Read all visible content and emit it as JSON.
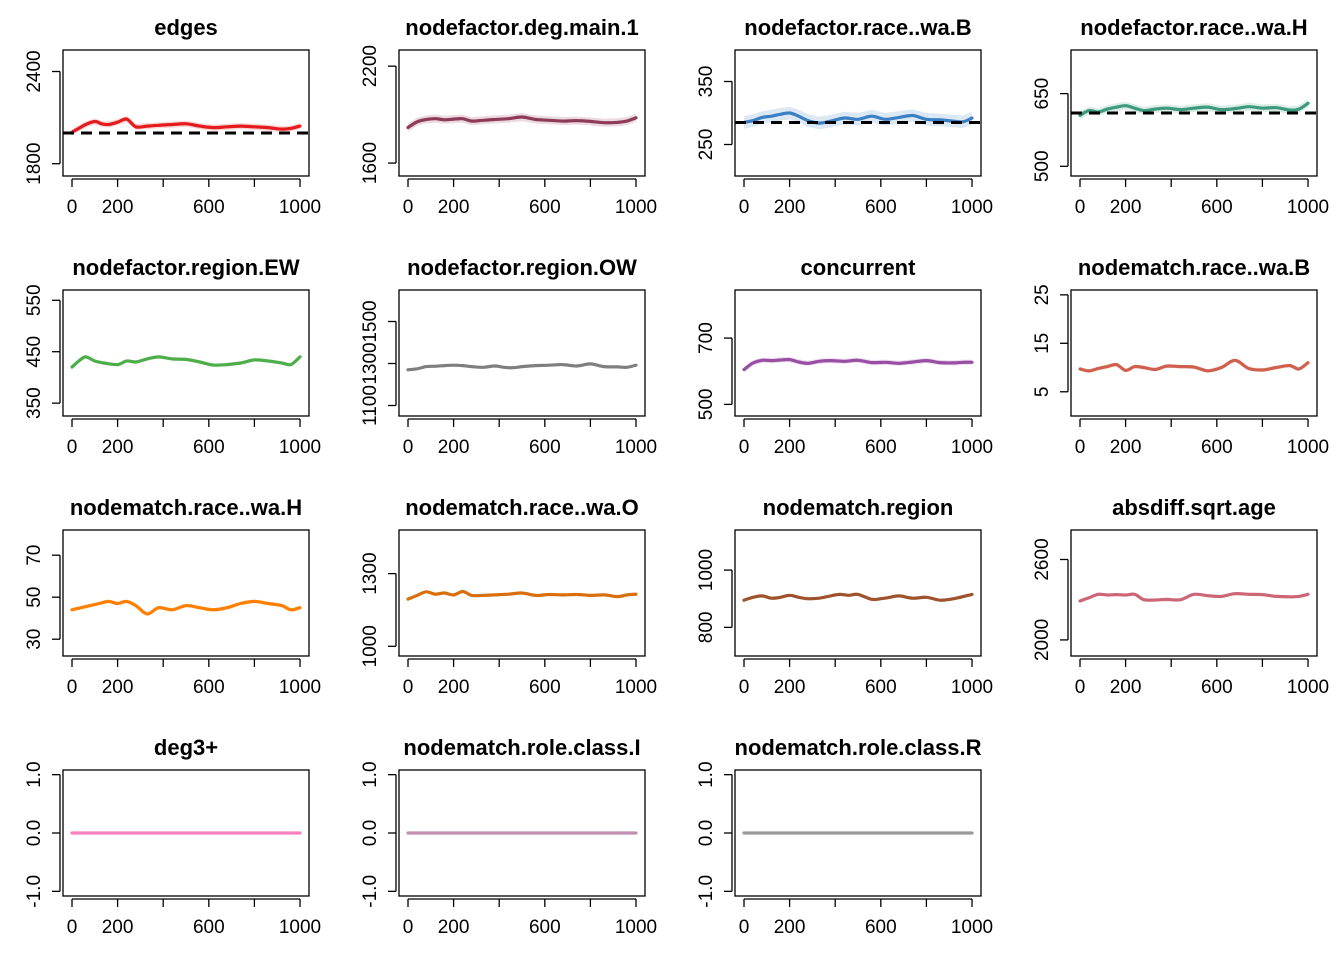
{
  "chart_data": [
    {
      "type": "line",
      "title": "edges",
      "color": "#e41a1c",
      "xlim": [
        0,
        1000
      ],
      "ylim": [
        1720,
        2540
      ],
      "yticks": [
        1800,
        2400
      ],
      "target": 2000,
      "band": 20,
      "x": [
        0,
        30,
        60,
        100,
        130,
        160,
        200,
        240,
        280,
        330,
        380,
        440,
        500,
        560,
        620,
        680,
        740,
        800,
        860,
        920,
        960,
        1000
      ],
      "values": [
        2005,
        2030,
        2055,
        2075,
        2060,
        2055,
        2070,
        2090,
        2040,
        2045,
        2050,
        2055,
        2060,
        2045,
        2035,
        2040,
        2045,
        2040,
        2035,
        2025,
        2030,
        2045
      ]
    },
    {
      "type": "line",
      "title": "nodefactor.deg.main.1",
      "color": "#8e3a59",
      "xlim": [
        0,
        1000
      ],
      "ylim": [
        1520,
        2300
      ],
      "yticks": [
        1600,
        2200
      ],
      "band": 25,
      "x": [
        0,
        40,
        80,
        120,
        160,
        200,
        240,
        280,
        330,
        380,
        440,
        500,
        560,
        620,
        680,
        740,
        800,
        860,
        920,
        960,
        1000
      ],
      "values": [
        1820,
        1855,
        1870,
        1875,
        1868,
        1872,
        1875,
        1860,
        1865,
        1870,
        1875,
        1885,
        1870,
        1865,
        1860,
        1863,
        1858,
        1850,
        1852,
        1860,
        1880
      ]
    },
    {
      "type": "line",
      "title": "nodefactor.race..wa.B",
      "color": "#3b7fc4",
      "xlim": [
        0,
        1000
      ],
      "ylim": [
        200,
        400
      ],
      "yticks": [
        250,
        350
      ],
      "target": 285,
      "band": 10,
      "x": [
        0,
        40,
        80,
        120,
        160,
        200,
        240,
        280,
        330,
        380,
        440,
        500,
        560,
        620,
        680,
        740,
        800,
        860,
        920,
        960,
        1000
      ],
      "values": [
        285,
        288,
        293,
        295,
        298,
        300,
        295,
        288,
        284,
        287,
        292,
        290,
        295,
        290,
        293,
        296,
        290,
        289,
        287,
        286,
        292
      ]
    },
    {
      "type": "line",
      "title": "nodefactor.race..wa.H",
      "color": "#3d9a7e",
      "xlim": [
        0,
        1000
      ],
      "ylim": [
        480,
        740
      ],
      "yticks": [
        500,
        650
      ],
      "target": 610,
      "band": 8,
      "x": [
        0,
        40,
        80,
        120,
        160,
        200,
        240,
        280,
        330,
        380,
        440,
        500,
        560,
        620,
        680,
        740,
        800,
        860,
        920,
        960,
        1000
      ],
      "values": [
        605,
        615,
        612,
        618,
        622,
        625,
        620,
        615,
        618,
        620,
        617,
        620,
        622,
        617,
        619,
        623,
        620,
        621,
        616,
        618,
        630
      ]
    },
    {
      "type": "line",
      "title": "nodefactor.region.EW",
      "color": "#4daf4a",
      "xlim": [
        0,
        1000
      ],
      "ylim": [
        325,
        570
      ],
      "yticks": [
        350,
        450,
        550
      ],
      "band": 3,
      "x": [
        0,
        30,
        60,
        100,
        140,
        200,
        240,
        280,
        330,
        380,
        440,
        500,
        560,
        620,
        680,
        740,
        800,
        860,
        920,
        960,
        1000
      ],
      "values": [
        420,
        432,
        440,
        432,
        428,
        425,
        432,
        430,
        436,
        440,
        436,
        435,
        430,
        424,
        425,
        428,
        434,
        432,
        428,
        425,
        440
      ]
    },
    {
      "type": "line",
      "title": "nodefactor.region.OW",
      "color": "#7f7f7f",
      "xlim": [
        0,
        1000
      ],
      "ylim": [
        1050,
        1650
      ],
      "yticks": [
        1100,
        1300,
        1500
      ],
      "band": 3,
      "x": [
        0,
        40,
        80,
        120,
        160,
        200,
        240,
        280,
        330,
        380,
        420,
        460,
        500,
        560,
        620,
        680,
        740,
        800,
        860,
        920,
        960,
        1000
      ],
      "values": [
        1270,
        1275,
        1285,
        1287,
        1290,
        1292,
        1290,
        1285,
        1282,
        1288,
        1282,
        1280,
        1285,
        1290,
        1292,
        1295,
        1288,
        1298,
        1285,
        1284,
        1282,
        1292
      ]
    },
    {
      "type": "line",
      "title": "concurrent",
      "color": "#984ea3",
      "xlim": [
        0,
        1000
      ],
      "ylim": [
        465,
        845
      ],
      "yticks": [
        500,
        700
      ],
      "band": 8,
      "x": [
        0,
        40,
        80,
        120,
        160,
        200,
        240,
        280,
        330,
        380,
        440,
        500,
        560,
        620,
        680,
        740,
        800,
        860,
        920,
        960,
        1000
      ],
      "values": [
        605,
        625,
        633,
        632,
        634,
        635,
        628,
        624,
        630,
        632,
        630,
        633,
        626,
        627,
        624,
        628,
        632,
        626,
        625,
        627,
        627
      ]
    },
    {
      "type": "line",
      "title": "nodematch.race..wa.B",
      "color": "#d0604e",
      "xlim": [
        0,
        1000
      ],
      "ylim": [
        0,
        26
      ],
      "yticks": [
        5,
        15,
        25
      ],
      "band": 0.4,
      "x": [
        0,
        40,
        80,
        120,
        160,
        200,
        240,
        280,
        330,
        380,
        440,
        500,
        560,
        620,
        680,
        740,
        800,
        860,
        920,
        960,
        1000
      ],
      "values": [
        9.7,
        9.3,
        9.8,
        10.2,
        10.6,
        9.4,
        10.2,
        10.0,
        9.6,
        10.3,
        10.2,
        10.1,
        9.3,
        10.0,
        11.5,
        9.8,
        9.5,
        10.0,
        10.4,
        9.7,
        11.0
      ]
    },
    {
      "type": "line",
      "title": "nodematch.race..wa.H",
      "color": "#ff7f00",
      "xlim": [
        0,
        1000
      ],
      "ylim": [
        22,
        82
      ],
      "yticks": [
        30,
        50,
        70
      ],
      "band": 0.8,
      "x": [
        0,
        40,
        80,
        120,
        160,
        200,
        240,
        280,
        330,
        380,
        440,
        500,
        560,
        620,
        680,
        740,
        800,
        860,
        920,
        960,
        1000
      ],
      "values": [
        44,
        45,
        46,
        47,
        48,
        47,
        48,
        46,
        42,
        45,
        44,
        46,
        45,
        44,
        45,
        47,
        48,
        47,
        46,
        44,
        45
      ]
    },
    {
      "type": "line",
      "title": "nodematch.race..wa.O",
      "color": "#d96e0d",
      "xlim": [
        0,
        1000
      ],
      "ylim": [
        960,
        1480
      ],
      "yticks": [
        1000,
        1300
      ],
      "band": 5,
      "x": [
        0,
        40,
        80,
        120,
        160,
        200,
        240,
        280,
        330,
        380,
        440,
        500,
        560,
        620,
        680,
        740,
        800,
        860,
        920,
        960,
        1000
      ],
      "values": [
        1195,
        1210,
        1225,
        1215,
        1220,
        1212,
        1226,
        1210,
        1210,
        1212,
        1215,
        1220,
        1210,
        1214,
        1212,
        1214,
        1210,
        1212,
        1205,
        1212,
        1215
      ]
    },
    {
      "type": "line",
      "title": "nodematch.region",
      "color": "#a0522d",
      "xlim": [
        0,
        1000
      ],
      "ylim": [
        700,
        1140
      ],
      "yticks": [
        800,
        1000
      ],
      "band": 4,
      "x": [
        0,
        40,
        80,
        120,
        160,
        200,
        240,
        280,
        330,
        380,
        420,
        460,
        500,
        560,
        600,
        640,
        680,
        740,
        800,
        860,
        920,
        1000
      ],
      "values": [
        895,
        905,
        910,
        902,
        905,
        912,
        905,
        900,
        902,
        910,
        915,
        912,
        915,
        898,
        900,
        905,
        910,
        902,
        905,
        895,
        900,
        915
      ]
    },
    {
      "type": "line",
      "title": "absdiff.sqrt.age",
      "color": "#cc6677",
      "xlim": [
        0,
        1000
      ],
      "ylim": [
        1880,
        2820
      ],
      "yticks": [
        2000,
        2600
      ],
      "band": 6,
      "x": [
        0,
        40,
        80,
        120,
        160,
        200,
        240,
        280,
        330,
        380,
        440,
        500,
        560,
        620,
        680,
        740,
        800,
        860,
        920,
        960,
        1000
      ],
      "values": [
        2290,
        2315,
        2340,
        2335,
        2338,
        2335,
        2340,
        2300,
        2298,
        2302,
        2300,
        2340,
        2330,
        2325,
        2345,
        2340,
        2338,
        2325,
        2322,
        2325,
        2340
      ]
    },
    {
      "type": "line",
      "title": "deg3+",
      "color": "#f781bf",
      "xlim": [
        0,
        1000
      ],
      "ylim": [
        -1.08,
        1.08
      ],
      "yticks": [
        -1.0,
        0.0,
        1.0
      ],
      "ytick_labels": [
        "-1.0",
        "0.0",
        "1.0"
      ],
      "band": 0,
      "x": [
        0,
        1000
      ],
      "values": [
        0,
        0
      ]
    },
    {
      "type": "line",
      "title": "nodematch.role.class.I",
      "color": "#c38fae",
      "xlim": [
        0,
        1000
      ],
      "ylim": [
        -1.08,
        1.08
      ],
      "yticks": [
        -1.0,
        0.0,
        1.0
      ],
      "ytick_labels": [
        "-1.0",
        "0.0",
        "1.0"
      ],
      "band": 0,
      "x": [
        0,
        1000
      ],
      "values": [
        0,
        0
      ]
    },
    {
      "type": "line",
      "title": "nodematch.role.class.R",
      "color": "#999999",
      "xlim": [
        0,
        1000
      ],
      "ylim": [
        -1.08,
        1.08
      ],
      "yticks": [
        -1.0,
        0.0,
        1.0
      ],
      "ytick_labels": [
        "-1.0",
        "0.0",
        "1.0"
      ],
      "band": 0,
      "x": [
        0,
        1000
      ],
      "values": [
        0,
        0
      ]
    }
  ],
  "shared_axis": {
    "xticks": [
      0,
      200,
      600,
      1000
    ],
    "xminor": [
      400,
      800
    ]
  }
}
